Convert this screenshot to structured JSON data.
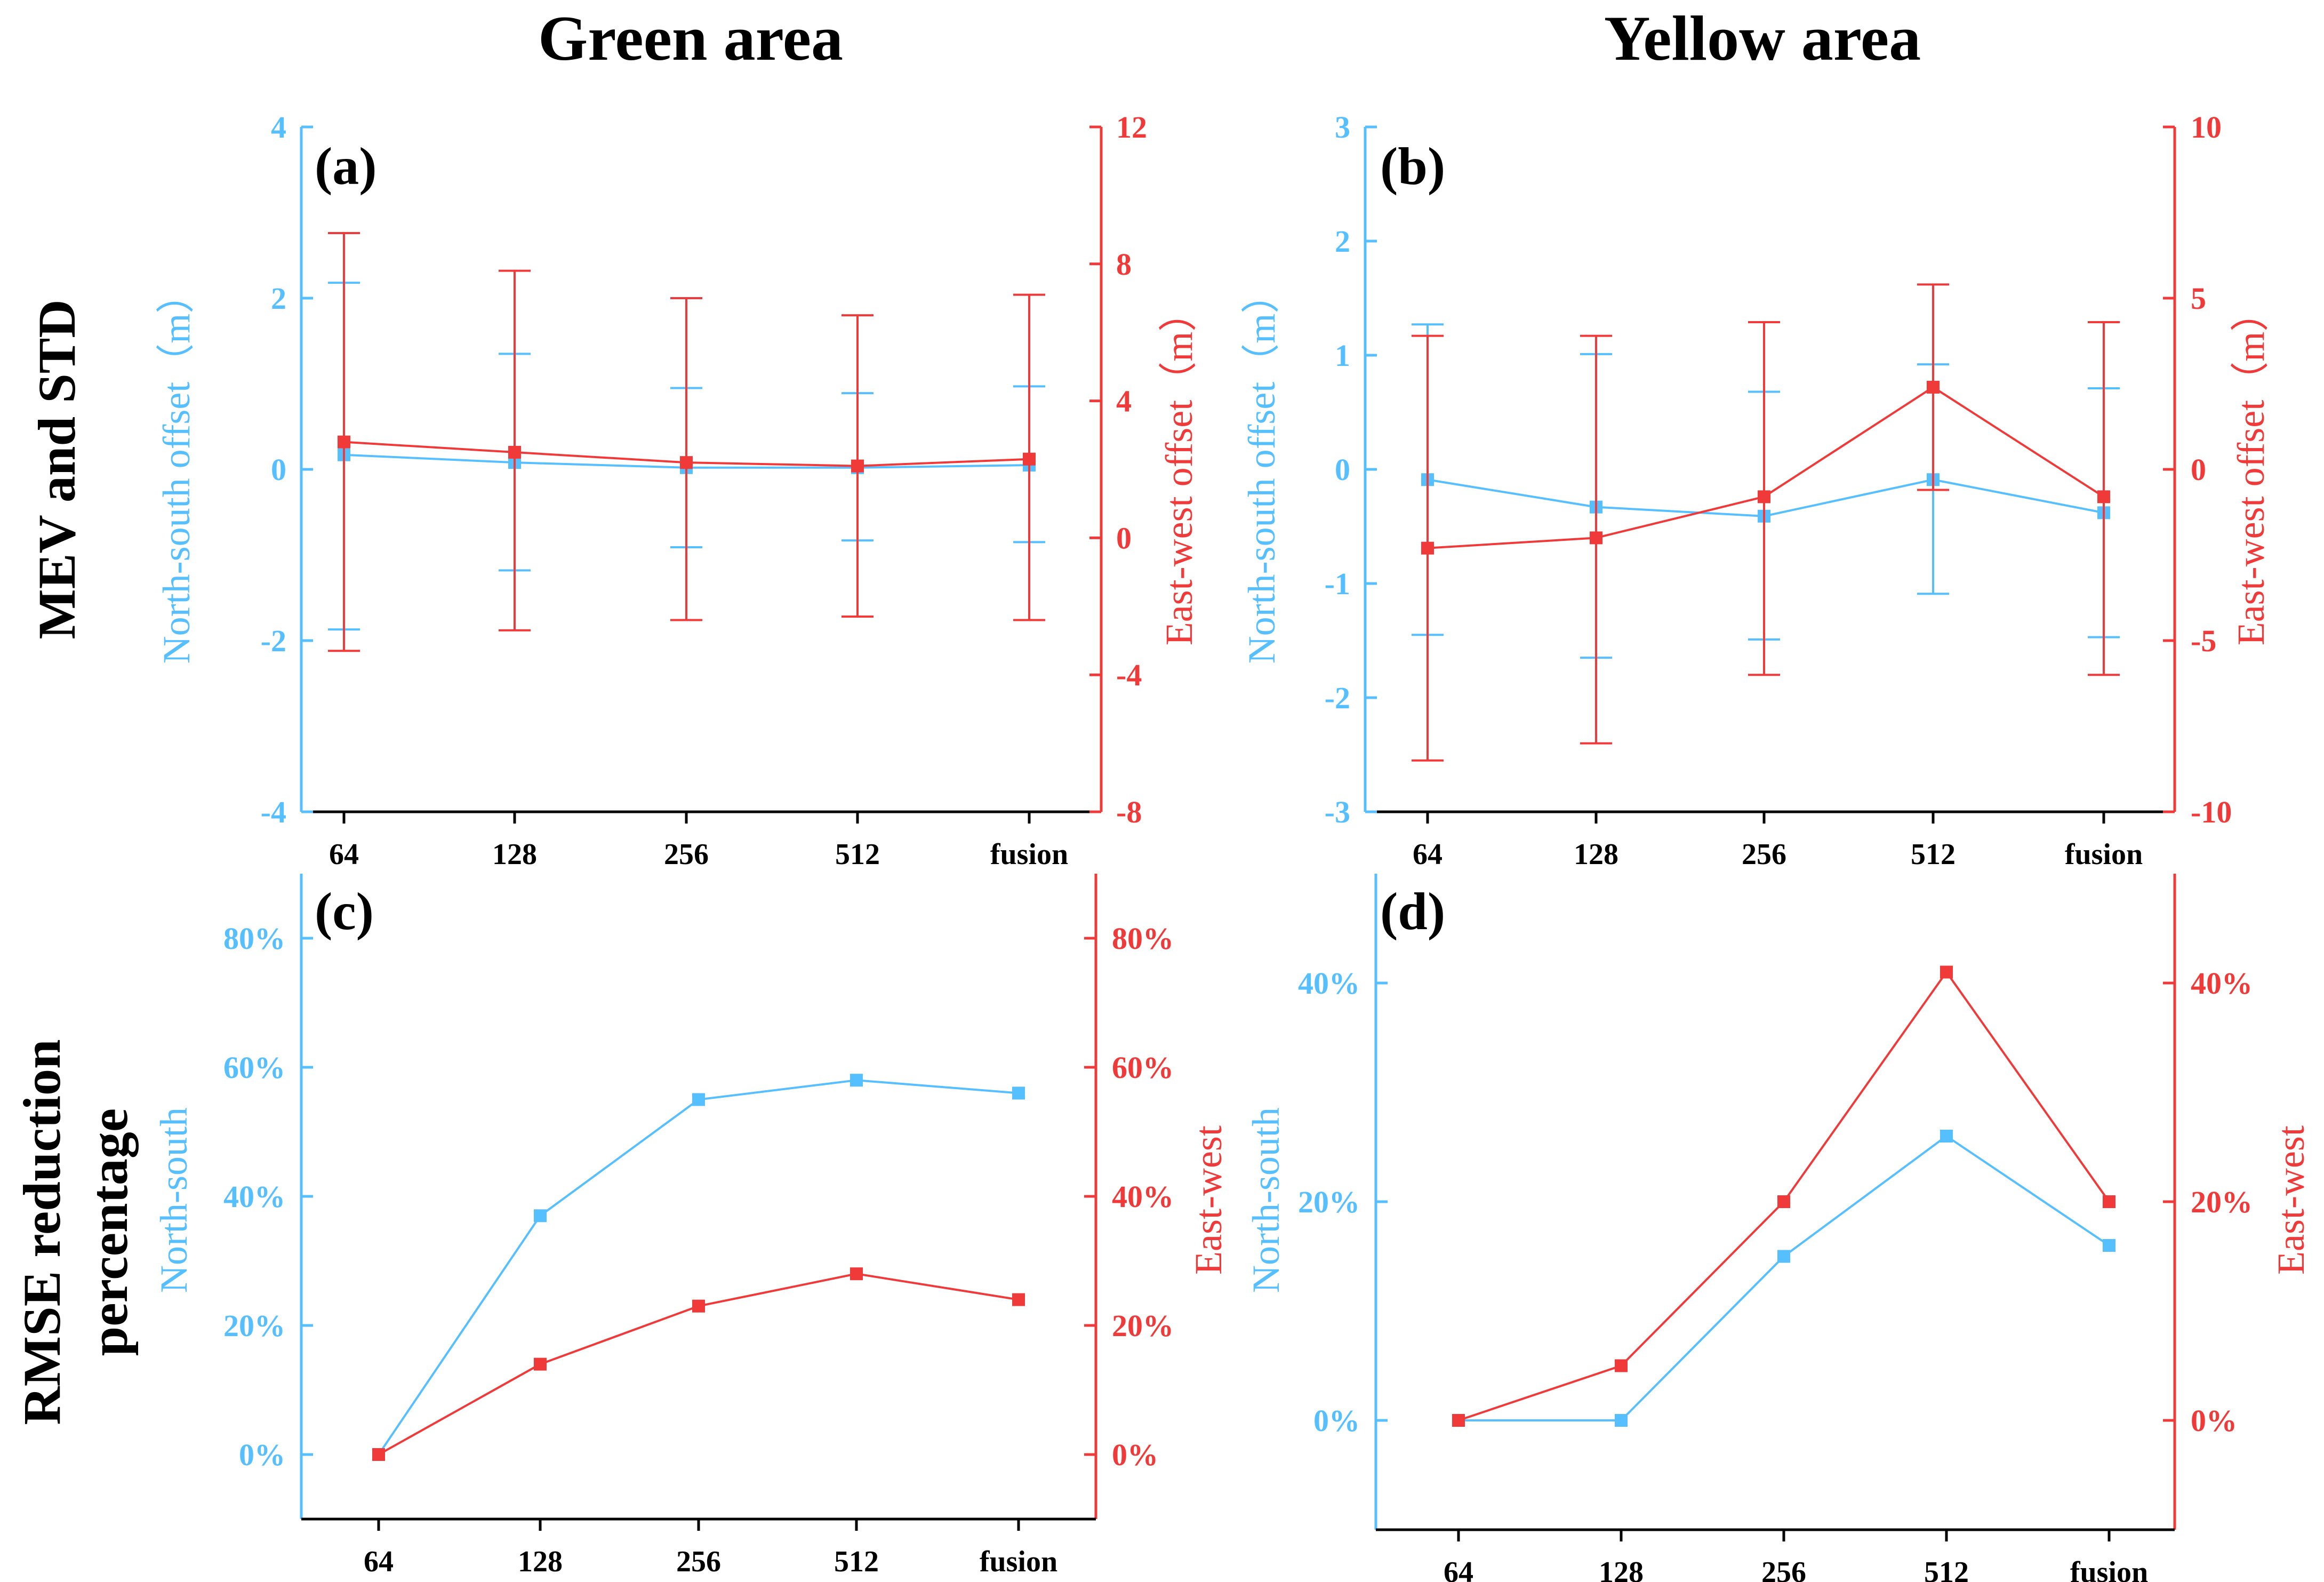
{
  "column_titles": [
    "Green area",
    "Yellow area"
  ],
  "row_titles": [
    "MEV and STD",
    "RMSE reduction",
    "percentage"
  ],
  "colors": {
    "north_south": "#56bfff",
    "east_west": "#f03a3a",
    "axis": "#000000"
  },
  "chart_data": [
    {
      "type": "line",
      "panel": "(a)",
      "categories": [
        "64",
        "128",
        "256",
        "512",
        "fusion"
      ],
      "left_axis": {
        "label": "North-south offset（m）",
        "ylim": [
          -4,
          4
        ],
        "ticks": [
          -4,
          -2,
          0,
          2,
          4
        ],
        "tick_labels": [
          "-4",
          "-2",
          "0",
          "2",
          "4"
        ]
      },
      "right_axis": {
        "label": "East-west offset（m）",
        "ylim": [
          -8,
          12
        ],
        "ticks": [
          -8,
          -4,
          0,
          4,
          8,
          12
        ],
        "tick_labels": [
          "-8",
          "-4",
          "0",
          "4",
          "8",
          "12"
        ]
      },
      "series": [
        {
          "name": "North-south",
          "axis": "left",
          "values": [
            0.17,
            0.08,
            0.02,
            0.02,
            0.05
          ],
          "err_low": [
            -1.87,
            -1.18,
            -0.91,
            -0.83,
            -0.85
          ],
          "err_high": [
            2.18,
            1.35,
            0.95,
            0.89,
            0.97
          ]
        },
        {
          "name": "East-west",
          "axis": "right",
          "values": [
            2.8,
            2.5,
            2.2,
            2.1,
            2.3
          ],
          "err_low": [
            -3.3,
            -2.7,
            -2.4,
            -2.3,
            -2.4
          ],
          "err_high": [
            8.9,
            7.8,
            7.0,
            6.5,
            7.1
          ]
        }
      ]
    },
    {
      "type": "line",
      "panel": "(b)",
      "categories": [
        "64",
        "128",
        "256",
        "512",
        "fusion"
      ],
      "left_axis": {
        "label": "North-south offset（m）",
        "ylim": [
          -3,
          3
        ],
        "ticks": [
          -3,
          -2,
          -1,
          0,
          1,
          2,
          3
        ],
        "tick_labels": [
          "-3",
          "-2",
          "-1",
          "0",
          "1",
          "2",
          "3"
        ]
      },
      "right_axis": {
        "label": "East-west offset（m）",
        "ylim": [
          -10,
          10
        ],
        "ticks": [
          -10,
          -5,
          0,
          5,
          10
        ],
        "tick_labels": [
          "-10",
          "-5",
          "0",
          "5",
          "10"
        ]
      },
      "series": [
        {
          "name": "North-south",
          "axis": "left",
          "values": [
            -0.09,
            -0.33,
            -0.41,
            -0.09,
            -0.38
          ],
          "err_low": [
            -1.45,
            -1.65,
            -1.49,
            -1.09,
            -1.47
          ],
          "err_high": [
            1.27,
            1.01,
            0.68,
            0.92,
            0.71
          ]
        },
        {
          "name": "East-west",
          "axis": "right",
          "values": [
            -2.3,
            -2.0,
            -0.8,
            2.4,
            -0.8
          ],
          "err_low": [
            -8.5,
            -8.0,
            -6.0,
            -0.6,
            -6.0
          ],
          "err_high": [
            3.9,
            3.9,
            4.3,
            5.4,
            4.3
          ]
        }
      ]
    },
    {
      "type": "line",
      "panel": "(c)",
      "categories": [
        "64",
        "128",
        "256",
        "512",
        "fusion"
      ],
      "left_axis": {
        "label": "North-south",
        "ylim": [
          -10,
          90
        ],
        "ticks": [
          0,
          20,
          40,
          60,
          80
        ],
        "tick_labels": [
          "0%",
          "20%",
          "40%",
          "60%",
          "80%"
        ]
      },
      "right_axis": {
        "label": "East-west",
        "ylim": [
          -10,
          90
        ],
        "ticks": [
          0,
          20,
          40,
          60,
          80
        ],
        "tick_labels": [
          "0%",
          "20%",
          "40%",
          "60%",
          "80%"
        ]
      },
      "series": [
        {
          "name": "North-south",
          "axis": "left",
          "values": [
            0,
            37,
            55,
            58,
            56
          ]
        },
        {
          "name": "East-west",
          "axis": "right",
          "values": [
            0,
            14,
            23,
            28,
            24
          ]
        }
      ]
    },
    {
      "type": "line",
      "panel": "(d)",
      "categories": [
        "64",
        "128",
        "256",
        "512",
        "fusion"
      ],
      "left_axis": {
        "label": "North-south",
        "ylim": [
          -10,
          50
        ],
        "ticks": [
          0,
          20,
          40
        ],
        "tick_labels": [
          "0%",
          "20%",
          "40%"
        ]
      },
      "right_axis": {
        "label": "East-west",
        "ylim": [
          -10,
          50
        ],
        "ticks": [
          0,
          20,
          40
        ],
        "tick_labels": [
          "0%",
          "20%",
          "40%"
        ]
      },
      "series": [
        {
          "name": "North-south",
          "axis": "left",
          "values": [
            0,
            0,
            15,
            26,
            16
          ]
        },
        {
          "name": "East-west",
          "axis": "right",
          "values": [
            0,
            5,
            20,
            41,
            20
          ]
        }
      ]
    }
  ]
}
